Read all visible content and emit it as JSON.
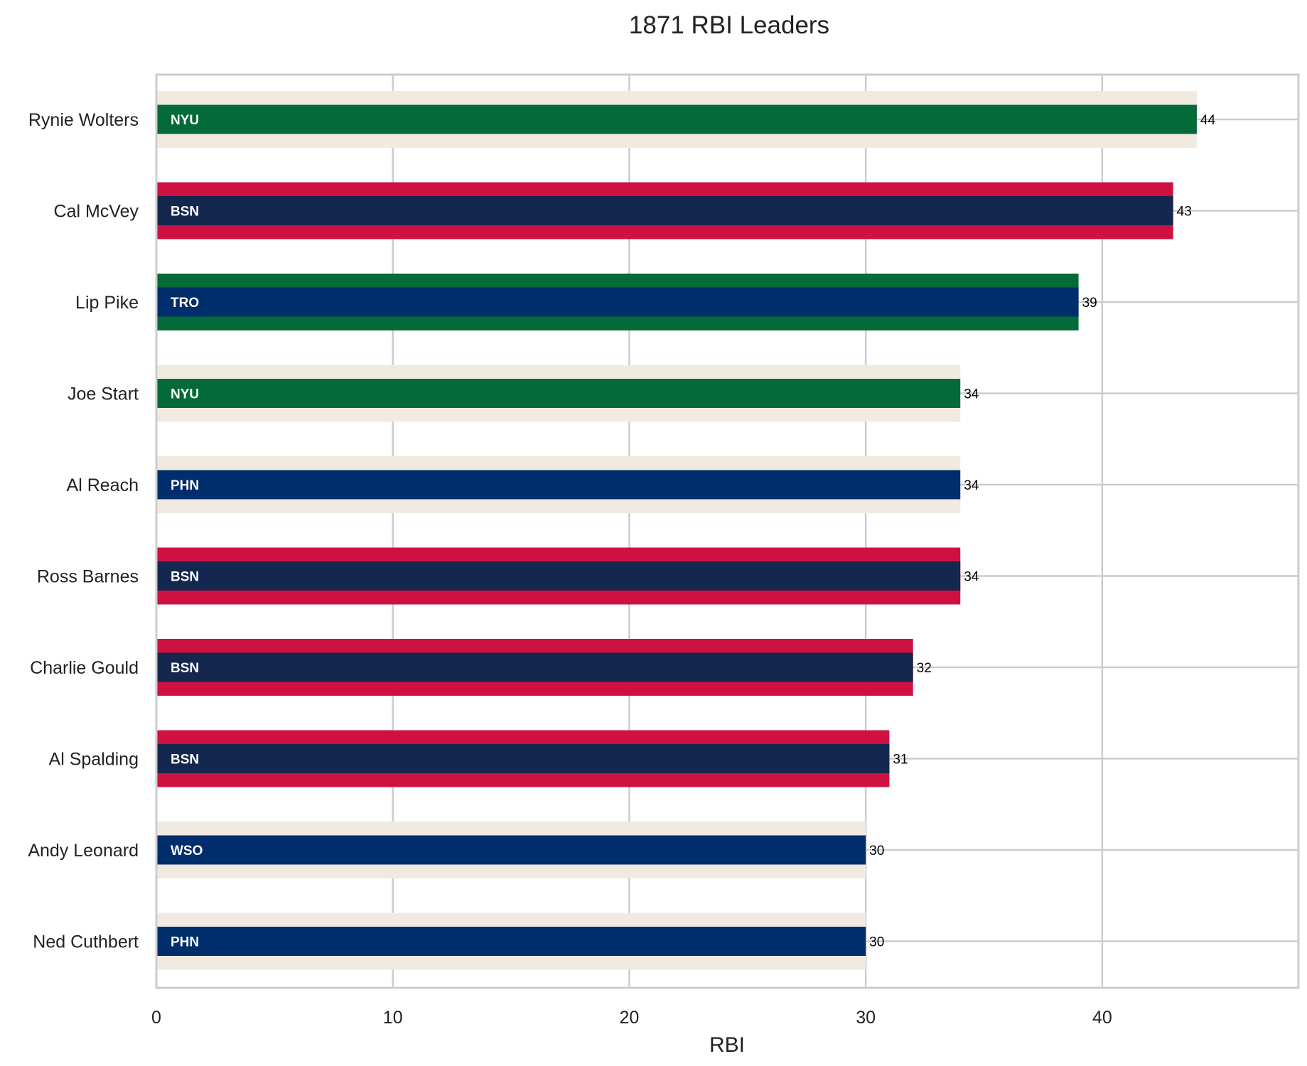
{
  "chart_data": {
    "type": "bar",
    "orientation": "horizontal",
    "title": "1871 RBI Leaders",
    "xlabel": "RBI",
    "ylabel": "",
    "xlim": [
      0,
      48.3
    ],
    "xticks": [
      0,
      10,
      20,
      30,
      40
    ],
    "grid": true,
    "categories": [
      "Rynie Wolters",
      "Cal McVey",
      "Lip Pike",
      "Joe Start",
      "Al Reach",
      "Ross Barnes",
      "Charlie Gould",
      "Al Spalding",
      "Andy Leonard",
      "Ned Cuthbert"
    ],
    "values": [
      44,
      43,
      39,
      34,
      34,
      34,
      32,
      31,
      30,
      30
    ],
    "teams": [
      "NYU",
      "BSN",
      "TRO",
      "NYU",
      "PHN",
      "BSN",
      "BSN",
      "BSN",
      "WSO",
      "PHN"
    ],
    "team_colors": {
      "NYU": {
        "primary": "#046A38",
        "secondary": "#F1EAE0"
      },
      "BSN": {
        "primary": "#14274E",
        "secondary": "#CE1141"
      },
      "TRO": {
        "primary": "#002D6B",
        "secondary": "#046A38"
      },
      "PHN": {
        "primary": "#002D6B",
        "secondary": "#F1EAE0"
      },
      "WSO": {
        "primary": "#002D6B",
        "secondary": "#F1EAE0"
      }
    },
    "colors": {
      "grid": "#cccccc",
      "axis": "#cccccc"
    }
  }
}
